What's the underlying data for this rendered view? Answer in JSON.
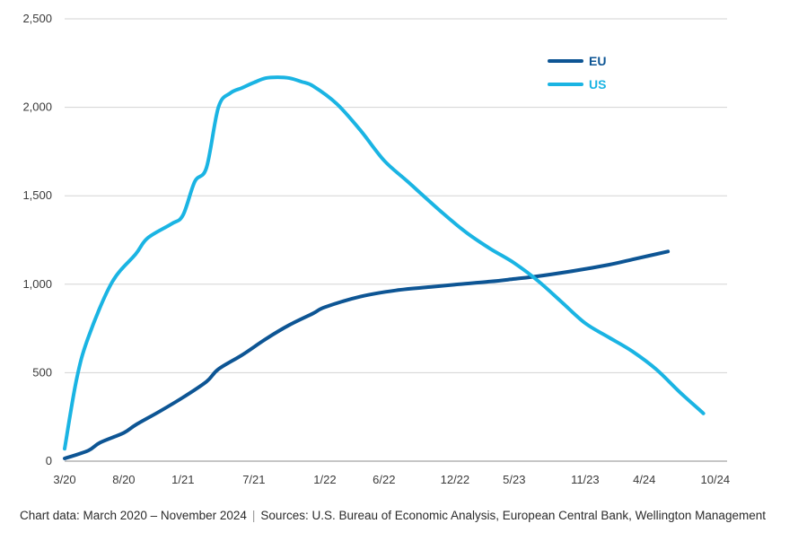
{
  "footer": {
    "chart_data_note": "Chart data: March 2020 – November 2024",
    "separator": "|",
    "sources": "Sources: U.S. Bureau of Economic Analysis, European Central Bank, Wellington Management"
  },
  "chart_data": {
    "type": "line",
    "title": "",
    "xlabel": "",
    "ylabel": "",
    "ylim": [
      0,
      2500
    ],
    "yticks": [
      0,
      500,
      1000,
      1500,
      2000,
      2500
    ],
    "ytick_labels": [
      "0",
      "500",
      "1,000",
      "1,500",
      "2,000",
      "2,500"
    ],
    "xticks": [
      "3/20",
      "8/20",
      "1/21",
      "7/21",
      "1/22",
      "6/22",
      "12/22",
      "5/23",
      "11/23",
      "4/24",
      "10/24"
    ],
    "xlim": [
      "3/20",
      "11/24"
    ],
    "grid": "horizontal",
    "legend_position": "top-right",
    "series": [
      {
        "name": "EU",
        "color": "#0d5594",
        "points": [
          [
            "3/20",
            15
          ],
          [
            "5/20",
            60
          ],
          [
            "6/20",
            105
          ],
          [
            "8/20",
            160
          ],
          [
            "9/20",
            205
          ],
          [
            "11/20",
            280
          ],
          [
            "1/21",
            360
          ],
          [
            "3/21",
            450
          ],
          [
            "4/21",
            520
          ],
          [
            "6/21",
            600
          ],
          [
            "8/21",
            690
          ],
          [
            "10/21",
            770
          ],
          [
            "12/21",
            835
          ],
          [
            "1/22",
            870
          ],
          [
            "4/22",
            930
          ],
          [
            "7/22",
            965
          ],
          [
            "10/22",
            985
          ],
          [
            "12/22",
            998
          ],
          [
            "3/23",
            1015
          ],
          [
            "5/23",
            1030
          ],
          [
            "7/23",
            1045
          ],
          [
            "10/23",
            1075
          ],
          [
            "1/24",
            1110
          ],
          [
            "3/24",
            1140
          ],
          [
            "6/24",
            1185
          ]
        ]
      },
      {
        "name": "US",
        "color": "#1ab4e3",
        "points": [
          [
            "3/20",
            70
          ],
          [
            "4/20",
            460
          ],
          [
            "5/20",
            700
          ],
          [
            "7/20",
            1010
          ],
          [
            "9/20",
            1170
          ],
          [
            "10/20",
            1260
          ],
          [
            "12/20",
            1340
          ],
          [
            "1/21",
            1390
          ],
          [
            "2/21",
            1580
          ],
          [
            "3/21",
            1660
          ],
          [
            "4/21",
            2000
          ],
          [
            "5/21",
            2080
          ],
          [
            "6/21",
            2110
          ],
          [
            "7/21",
            2140
          ],
          [
            "8/21",
            2165
          ],
          [
            "9/21",
            2170
          ],
          [
            "10/21",
            2165
          ],
          [
            "11/21",
            2145
          ],
          [
            "12/21",
            2120
          ],
          [
            "2/22",
            2020
          ],
          [
            "4/22",
            1870
          ],
          [
            "6/22",
            1700
          ],
          [
            "8/22",
            1580
          ],
          [
            "11/22",
            1400
          ],
          [
            "1/23",
            1290
          ],
          [
            "3/23",
            1200
          ],
          [
            "5/23",
            1120
          ],
          [
            "7/23",
            1020
          ],
          [
            "9/23",
            900
          ],
          [
            "11/23",
            780
          ],
          [
            "1/24",
            700
          ],
          [
            "3/24",
            620
          ],
          [
            "5/24",
            520
          ],
          [
            "7/24",
            390
          ],
          [
            "9/24",
            270
          ]
        ]
      }
    ]
  }
}
